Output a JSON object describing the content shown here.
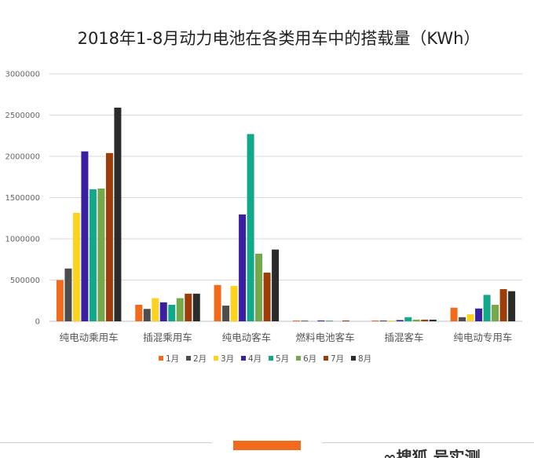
{
  "chart_data": {
    "type": "bar",
    "title": "2018年1-8月动力电池在各类用车中的搭载量（KWh）",
    "xlabel": "",
    "ylabel": "",
    "ylim": [
      0,
      3000000
    ],
    "yticks": [
      0,
      500000,
      1000000,
      1500000,
      2000000,
      2500000,
      3000000
    ],
    "ytick_labels": [
      "0",
      "500000",
      "1000000",
      "1500000",
      "2000000",
      "2500000",
      "3000000"
    ],
    "grid": true,
    "legend_position": "bottom",
    "categories": [
      "纯电动乘用车",
      "插混乘用车",
      "纯电动客车",
      "燃料电池客车",
      "插混客车",
      "纯电动专用车"
    ],
    "series": [
      {
        "name": "1月",
        "color": "#f26b1d",
        "values": [
          500000,
          200000,
          440000,
          10000,
          10000,
          165000
        ]
      },
      {
        "name": "2月",
        "color": "#4d4d4d",
        "values": [
          640000,
          150000,
          190000,
          8000,
          10000,
          50000
        ]
      },
      {
        "name": "3月",
        "color": "#ffd21f",
        "values": [
          1315000,
          280000,
          430000,
          0,
          10000,
          85000
        ]
      },
      {
        "name": "4月",
        "color": "#3b1fa3",
        "values": [
          2060000,
          230000,
          1295000,
          10000,
          15000,
          155000
        ]
      },
      {
        "name": "5月",
        "color": "#13a88a",
        "values": [
          1600000,
          200000,
          2270000,
          8000,
          50000,
          320000
        ]
      },
      {
        "name": "6月",
        "color": "#74a84a",
        "values": [
          1610000,
          280000,
          820000,
          0,
          20000,
          200000
        ]
      },
      {
        "name": "7月",
        "color": "#9c3d0a",
        "values": [
          2040000,
          335000,
          590000,
          10000,
          20000,
          390000
        ]
      },
      {
        "name": "8月",
        "color": "#2b2b2b",
        "values": [
          2590000,
          335000,
          870000,
          0,
          20000,
          365000
        ]
      }
    ]
  },
  "footer": {
    "logo_text": "∞搜狐 号实测",
    "accent_color": "#f26b1d"
  }
}
